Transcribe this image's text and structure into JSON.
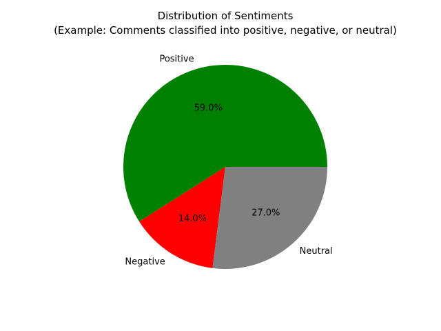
{
  "chart_data": {
    "type": "pie",
    "title": "Distribution of Sentiments",
    "subtitle": "(Example: Comments classified into positive, negative, or neutral)",
    "slices": [
      {
        "label": "Positive",
        "value": 59.0,
        "percent_label": "59.0%",
        "color": "#008000"
      },
      {
        "label": "Negative",
        "value": 14.0,
        "percent_label": "14.0%",
        "color": "#ff0000"
      },
      {
        "label": "Neutral",
        "value": 27.0,
        "percent_label": "27.0%",
        "color": "#808080"
      }
    ],
    "start_angle_deg": 0,
    "direction": "counterclockwise",
    "legend": false
  }
}
